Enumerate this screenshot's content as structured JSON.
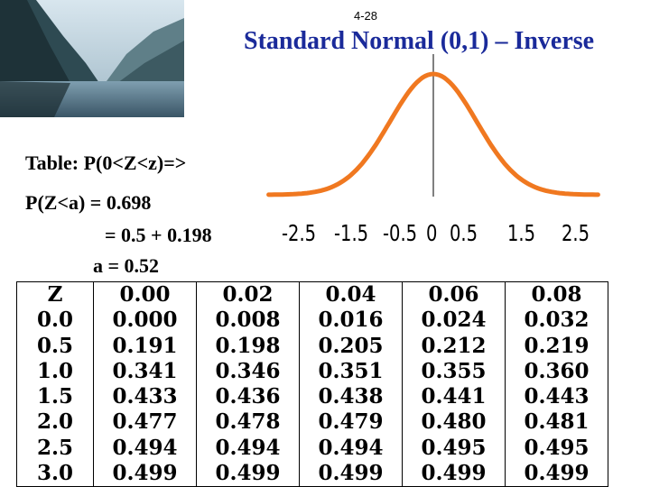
{
  "slide_number": "4-28",
  "title": "Standard Normal (0,1) – Inverse",
  "lines": {
    "table_label": "Table: P(0<Z<z)=>",
    "prob": "P(Z<a) = 0.698",
    "sum": "= 0.5 + 0.198",
    "answer": "a = 0.52"
  },
  "axis_ticks": [
    "-2.5",
    "-1.5",
    "-0.5",
    "0",
    "0.5",
    "1.5",
    "2.5"
  ],
  "colors": {
    "curve": "#f07820",
    "title": "#1a2a9a"
  },
  "table": {
    "headers": [
      "Z",
      "0.00",
      "0.02",
      "0.04",
      "0.06",
      "0.08"
    ],
    "rows": [
      [
        "0.0",
        "0.000",
        "0.008",
        "0.016",
        "0.024",
        "0.032"
      ],
      [
        "0.5",
        "0.191",
        "0.198",
        "0.205",
        "0.212",
        "0.219"
      ],
      [
        "1.0",
        "0.341",
        "0.346",
        "0.351",
        "0.355",
        "0.360"
      ],
      [
        "1.5",
        "0.433",
        "0.436",
        "0.438",
        "0.441",
        "0.443"
      ],
      [
        "2.0",
        "0.477",
        "0.478",
        "0.479",
        "0.480",
        "0.481"
      ],
      [
        "2.5",
        "0.494",
        "0.494",
        "0.494",
        "0.495",
        "0.495"
      ],
      [
        "3.0",
        "0.499",
        "0.499",
        "0.499",
        "0.499",
        "0.499"
      ]
    ]
  }
}
